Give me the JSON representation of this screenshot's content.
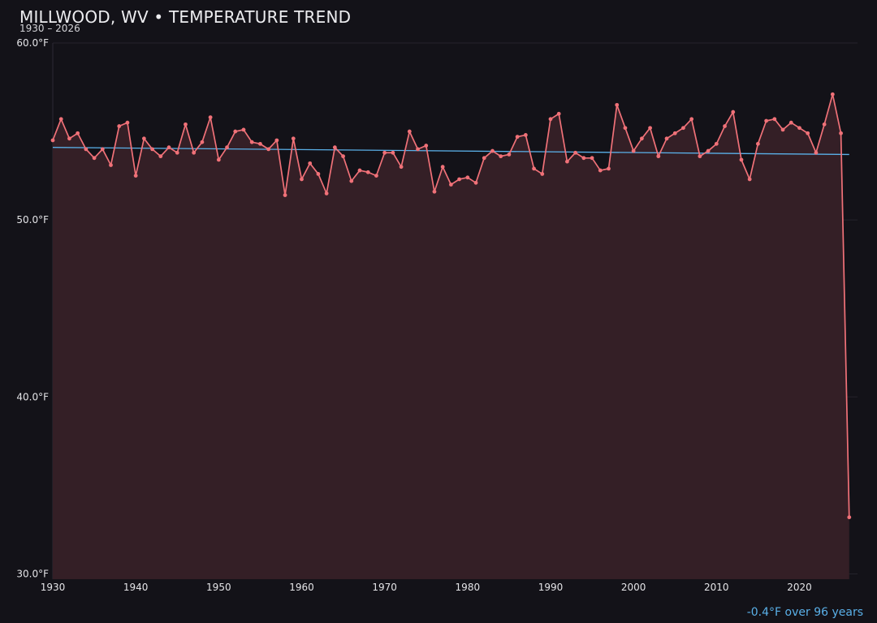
{
  "chart_data": {
    "type": "line",
    "title": "MILLWOOD, WV • TEMPERATURE TREND",
    "subtitle": "1930 – 2026",
    "xlabel": "",
    "ylabel": "",
    "xlim": [
      1930,
      2027
    ],
    "ylim": [
      29.7,
      60.0
    ],
    "x_ticks": [
      1930,
      1940,
      1950,
      1960,
      1970,
      1980,
      1990,
      2000,
      2010,
      2020
    ],
    "y_ticks": [
      {
        "value": 30,
        "label": "30.0°F"
      },
      {
        "value": 40,
        "label": "40.0°F"
      },
      {
        "value": 50,
        "label": "50.0°F"
      },
      {
        "value": 60,
        "label": "60.0°F"
      }
    ],
    "grid": true,
    "area_fill": true,
    "series": [
      {
        "role": "observed",
        "color": "#f07178",
        "x": [
          1930,
          1931,
          1932,
          1933,
          1934,
          1935,
          1936,
          1937,
          1938,
          1939,
          1940,
          1941,
          1942,
          1943,
          1944,
          1945,
          1946,
          1947,
          1948,
          1949,
          1950,
          1951,
          1952,
          1953,
          1954,
          1955,
          1956,
          1957,
          1958,
          1959,
          1960,
          1961,
          1962,
          1963,
          1964,
          1965,
          1966,
          1967,
          1968,
          1969,
          1970,
          1971,
          1972,
          1973,
          1974,
          1975,
          1976,
          1977,
          1978,
          1979,
          1980,
          1981,
          1982,
          1983,
          1984,
          1985,
          1986,
          1987,
          1988,
          1989,
          1990,
          1991,
          1992,
          1993,
          1994,
          1995,
          1996,
          1997,
          1998,
          1999,
          2000,
          2001,
          2002,
          2003,
          2004,
          2005,
          2006,
          2007,
          2008,
          2009,
          2010,
          2011,
          2012,
          2013,
          2014,
          2015,
          2016,
          2017,
          2018,
          2019,
          2020,
          2021,
          2022,
          2023,
          2024,
          2025,
          2026
        ],
        "y": [
          54.5,
          55.7,
          54.6,
          54.9,
          54.0,
          53.5,
          54.0,
          53.1,
          55.3,
          55.5,
          52.5,
          54.6,
          54.0,
          53.6,
          54.1,
          53.8,
          55.4,
          53.8,
          54.4,
          55.8,
          53.4,
          54.1,
          55.0,
          55.1,
          54.4,
          54.3,
          54.0,
          54.5,
          51.4,
          54.6,
          52.3,
          53.2,
          52.6,
          51.5,
          54.1,
          53.6,
          52.2,
          52.8,
          52.7,
          52.5,
          53.8,
          53.8,
          53.0,
          55.0,
          54.0,
          54.2,
          51.6,
          53.0,
          52.0,
          52.3,
          52.4,
          52.1,
          53.5,
          53.9,
          53.6,
          53.7,
          54.7,
          54.8,
          52.9,
          52.6,
          55.7,
          56.0,
          53.3,
          53.8,
          53.5,
          53.5,
          52.8,
          52.9,
          56.5,
          55.2,
          53.9,
          54.6,
          55.2,
          53.6,
          54.6,
          54.9,
          55.2,
          55.7,
          53.6,
          53.9,
          54.3,
          55.3,
          56.1,
          53.4,
          52.3,
          54.3,
          55.6,
          55.7,
          55.1,
          55.5,
          55.2,
          54.9,
          53.8,
          55.4,
          57.1,
          54.9,
          33.2
        ]
      },
      {
        "role": "trend",
        "color": "#5ab0e8",
        "x": [
          1930,
          2026
        ],
        "y": [
          54.1,
          53.7
        ]
      }
    ]
  },
  "footer": {
    "trend_note": "-0.4°F over 96 years"
  }
}
